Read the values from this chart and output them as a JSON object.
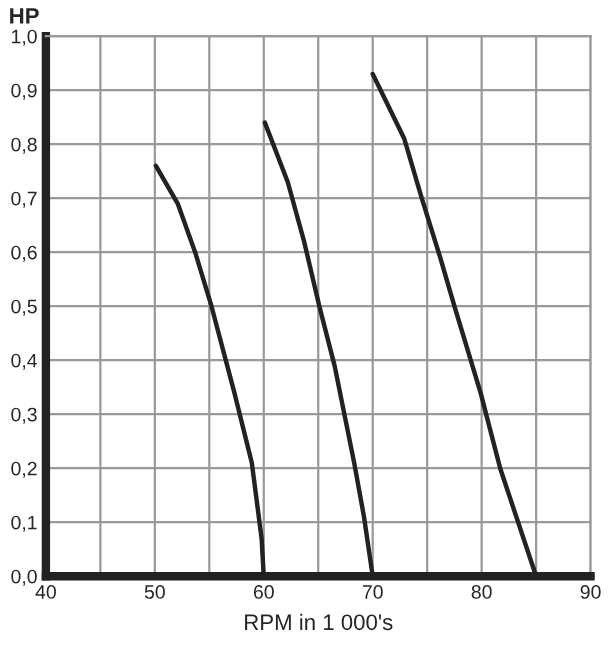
{
  "chart_data": {
    "type": "line",
    "xlabel": "RPM in 1 000's",
    "ylabel": "HP",
    "series": [
      {
        "color": "#222222",
        "x": [
          50.1,
          52.1,
          53.7,
          55.2,
          57.3,
          58.9,
          59.8,
          60
        ],
        "values": [
          0.76,
          0.69,
          0.6,
          0.5,
          0.34,
          0.21,
          0.07,
          0
        ]
      },
      {
        "color": "#222222",
        "x": [
          60.1,
          62.2,
          63.7,
          65.1,
          66.5,
          68.3,
          69.2,
          70
        ],
        "values": [
          0.84,
          0.73,
          0.62,
          0.5,
          0.39,
          0.21,
          0.11,
          0
        ]
      },
      {
        "color": "#222222",
        "x": [
          70,
          72.9,
          74.5,
          76.2,
          77.5,
          79.9,
          81.7,
          85
        ],
        "values": [
          0.93,
          0.81,
          0.7,
          0.59,
          0.5,
          0.34,
          0.2,
          0
        ]
      }
    ],
    "xlim": [
      40,
      90
    ],
    "xticks": [
      40,
      {
        "value": 45,
        "label": null
      },
      50,
      {
        "value": 55,
        "label": null
      },
      60,
      {
        "value": 65,
        "label": null
      },
      70,
      {
        "value": 75,
        "label": null
      },
      80,
      {
        "value": 85,
        "label": null
      },
      90
    ],
    "ylim": [
      0,
      1.0
    ],
    "yticks": [
      {
        "value": 0,
        "label": "0,0"
      },
      {
        "value": 0.1,
        "label": "0,1"
      },
      {
        "value": 0.2,
        "label": "0,2"
      },
      {
        "value": 0.3,
        "label": "0,3"
      },
      {
        "value": 0.4,
        "label": "0,4"
      },
      {
        "value": 0.5,
        "label": "0,5"
      },
      {
        "value": 0.6,
        "label": "0,6"
      },
      {
        "value": 0.7,
        "label": "0,7"
      },
      {
        "value": 0.8,
        "label": "0,8"
      },
      {
        "value": 0.9,
        "label": "0,9"
      },
      {
        "value": 1.0,
        "label": "1,0"
      }
    ],
    "grid": true,
    "legend": false,
    "marker": "none",
    "line_style": "solid"
  }
}
